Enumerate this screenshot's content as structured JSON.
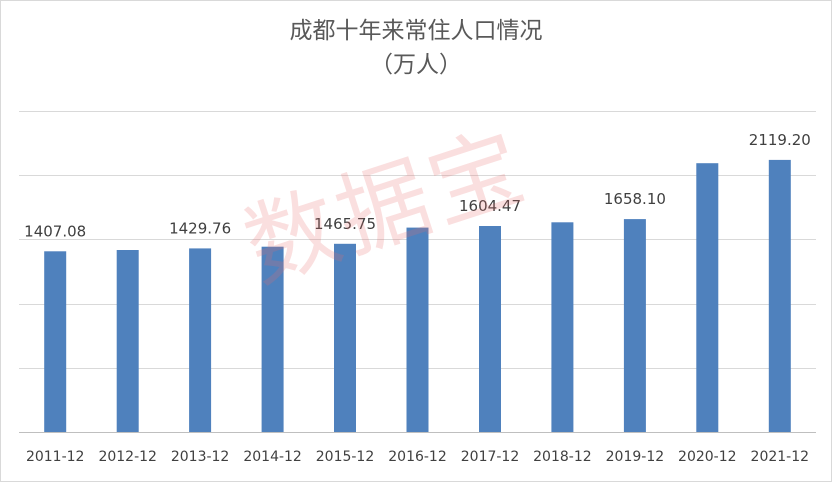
{
  "chart_data": {
    "type": "bar",
    "title": "成都十年来常住人口情况",
    "subtitle": "（万人）",
    "categories": [
      "2011-12",
      "2012-12",
      "2013-12",
      "2014-12",
      "2015-12",
      "2016-12",
      "2017-12",
      "2018-12",
      "2019-12",
      "2020-12",
      "2021-12"
    ],
    "values": [
      1407.08,
      1417.8,
      1429.76,
      1442.8,
      1465.75,
      1591.8,
      1604.47,
      1633.0,
      1658.1,
      2093.8,
      2119.2
    ],
    "data_labels": [
      "1407.08",
      "",
      "1429.76",
      "",
      "1465.75",
      "",
      "1604.47",
      "",
      "1658.10",
      "",
      "2119.20"
    ],
    "ylim": [
      0,
      2500
    ],
    "yticks": [
      0,
      500,
      1000,
      1500,
      2000,
      2500
    ],
    "show_y_tick_labels": false,
    "grid": true,
    "bar_color": "#4f81bd",
    "watermark": "数据宝"
  }
}
